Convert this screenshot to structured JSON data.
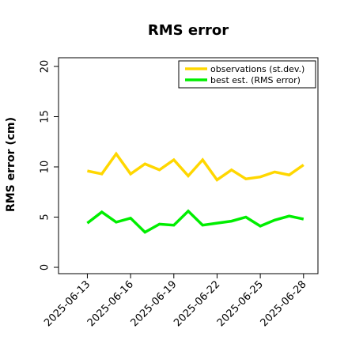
{
  "chart_data": {
    "type": "line",
    "title": "RMS error",
    "xlabel": "",
    "ylabel": "RMS error (cm)",
    "ylim": [
      0,
      20
    ],
    "yticks": [
      0,
      5,
      10,
      15,
      20
    ],
    "x": [
      "2025-06-13",
      "2025-06-14",
      "2025-06-15",
      "2025-06-16",
      "2025-06-17",
      "2025-06-18",
      "2025-06-19",
      "2025-06-20",
      "2025-06-21",
      "2025-06-22",
      "2025-06-23",
      "2025-06-24",
      "2025-06-25",
      "2025-06-26",
      "2025-06-27",
      "2025-06-28"
    ],
    "xlim": [
      "2025-06-11",
      "2025-06-29"
    ],
    "xticks": [
      {
        "label": "2025-06-13",
        "color": "#000000"
      },
      {
        "label": "2025-06-16",
        "color": "#000000"
      },
      {
        "label": "2025-06-19",
        "color": "#1a8a1a"
      },
      {
        "label": "2025-06-22",
        "color": "#000000"
      },
      {
        "label": "2025-06-25",
        "color": "#000000"
      },
      {
        "label": "2025-06-28",
        "color": "#000000"
      }
    ],
    "series": [
      {
        "name": "observations (st.dev.)",
        "color": "#ffd700",
        "values": [
          9.6,
          9.3,
          11.3,
          9.3,
          10.3,
          9.7,
          10.7,
          9.1,
          10.7,
          8.7,
          9.7,
          8.8,
          9.0,
          9.5,
          9.2,
          10.2
        ]
      },
      {
        "name": "best est. (RMS error)",
        "color": "#00ee00",
        "values": [
          4.4,
          5.5,
          4.5,
          4.9,
          3.5,
          4.3,
          4.2,
          5.6,
          4.2,
          4.4,
          4.6,
          5.0,
          4.1,
          4.7,
          5.1,
          4.8
        ]
      }
    ],
    "grid": false,
    "legend": "top-right"
  }
}
